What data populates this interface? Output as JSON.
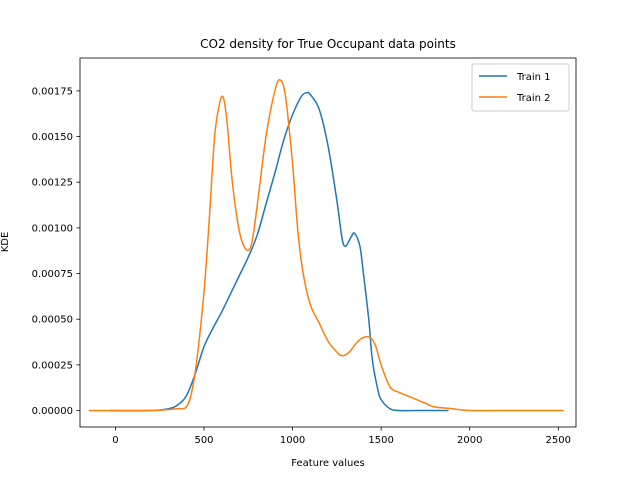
{
  "chart_data": {
    "type": "line",
    "title": "CO2 density for True Occupant data points",
    "xlabel": "Feature values",
    "ylabel": "KDE",
    "xlim": [
      -200,
      2600
    ],
    "ylim": [
      -9e-05,
      0.00193
    ],
    "xticks": [
      0,
      500,
      1000,
      1500,
      2000,
      2500
    ],
    "yticks": [
      0.0,
      0.00025,
      0.0005,
      0.00075,
      0.001,
      0.00125,
      0.0015,
      0.00175
    ],
    "ytick_labels": [
      "0.00000",
      "0.00025",
      "0.00050",
      "0.00075",
      "0.00100",
      "0.00125",
      "0.00150",
      "0.00175"
    ],
    "grid": false,
    "legend_position": "upper right",
    "series": [
      {
        "name": "Train 1",
        "color": "#1f77b4",
        "x": [
          -30,
          200,
          300,
          350,
          400,
          450,
          500,
          550,
          600,
          650,
          700,
          750,
          800,
          850,
          900,
          950,
          1000,
          1050,
          1080,
          1100,
          1150,
          1200,
          1250,
          1280,
          1300,
          1330,
          1350,
          1380,
          1400,
          1430,
          1450,
          1480,
          1500,
          1550,
          1600,
          1700,
          1880
        ],
        "y": [
          0.0,
          0.0,
          1e-05,
          3e-05,
          8e-05,
          0.0002,
          0.00035,
          0.00045,
          0.00054,
          0.00064,
          0.00074,
          0.00084,
          0.00096,
          0.00113,
          0.0013,
          0.00148,
          0.00162,
          0.00172,
          0.00174,
          0.00173,
          0.00165,
          0.00145,
          0.00115,
          0.00094,
          0.0009,
          0.00095,
          0.00097,
          0.0009,
          0.00075,
          0.0005,
          0.00028,
          0.00012,
          6e-05,
          1e-05,
          0.0,
          0.0,
          0.0
        ]
      },
      {
        "name": "Train 2",
        "color": "#ff7f0e",
        "x": [
          -150,
          200,
          350,
          400,
          430,
          460,
          500,
          530,
          560,
          590,
          610,
          630,
          660,
          700,
          740,
          770,
          800,
          850,
          900,
          930,
          960,
          1000,
          1030,
          1060,
          1100,
          1150,
          1200,
          1250,
          1280,
          1320,
          1360,
          1400,
          1440,
          1470,
          1500,
          1550,
          1600,
          1650,
          1700,
          1750,
          1800,
          1900,
          2000,
          2200,
          2530
        ],
        "y": [
          0.0,
          0.0,
          1e-05,
          2e-05,
          0.0001,
          0.00028,
          0.00065,
          0.00105,
          0.0015,
          0.00169,
          0.00171,
          0.00158,
          0.00125,
          0.00098,
          0.00088,
          0.00092,
          0.00112,
          0.0015,
          0.00175,
          0.00181,
          0.00172,
          0.00135,
          0.00098,
          0.00075,
          0.00058,
          0.00048,
          0.00038,
          0.00032,
          0.0003,
          0.00032,
          0.00037,
          0.0004,
          0.0004,
          0.00035,
          0.00025,
          0.00013,
          0.0001,
          8e-05,
          6e-05,
          4e-05,
          2e-05,
          1e-05,
          0.0,
          0.0,
          0.0
        ]
      }
    ]
  }
}
